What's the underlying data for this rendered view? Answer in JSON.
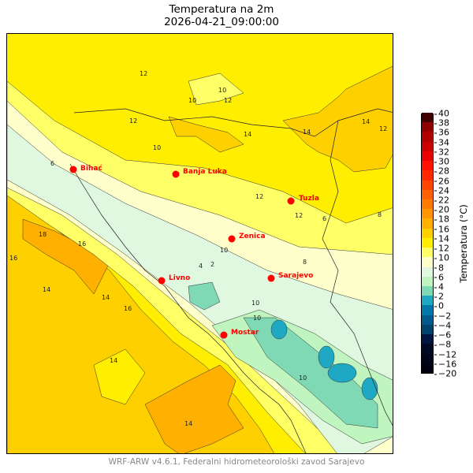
{
  "title": "Temperatura na 2m",
  "subtitle": "2026-04-21_09:00:00",
  "cities": [
    "Bihać",
    "Banja Luka",
    "Tuzla",
    "Zenica",
    "Livno",
    "Sarajevo",
    "Mostar"
  ],
  "contour_labels": [
    "12",
    "10",
    "12",
    "10",
    "12",
    "14",
    "14",
    "12",
    "14",
    "10",
    "6",
    "12",
    "12",
    "16",
    "18",
    "16",
    "14",
    "14",
    "14",
    "10",
    "10",
    "6",
    "8",
    "10",
    "2",
    "4",
    "16",
    "10",
    "14",
    "8"
  ],
  "colorbar": {
    "label": "Temperatura (°C)",
    "ticks": [
      "40",
      "38",
      "36",
      "34",
      "32",
      "30",
      "28",
      "26",
      "24",
      "22",
      "20",
      "18",
      "16",
      "14",
      "12",
      "10",
      "8",
      "6",
      "4",
      "2",
      "0",
      "−2",
      "−4",
      "−6",
      "−8",
      "−12",
      "−16",
      "−20"
    ],
    "colors_bottom_to_top": [
      "#000010",
      "#00051a",
      "#000a25",
      "#001540",
      "#00446e",
      "#005a8c",
      "#0078a8",
      "#1ea8c4",
      "#7fd9b5",
      "#c0f5c0",
      "#e0f8e0",
      "#ffffcc",
      "#ffff66",
      "#ffee00",
      "#ffd000",
      "#ffb000",
      "#ff9500",
      "#ff7a00",
      "#ff6000",
      "#ff4500",
      "#ff2800",
      "#ff1000",
      "#e80000",
      "#cc0000",
      "#b00000",
      "#900000",
      "#400000"
    ]
  },
  "footer": "WRF-ARW v4.6.1, Federalni hidrometeorološki zavod Sarajevo"
}
